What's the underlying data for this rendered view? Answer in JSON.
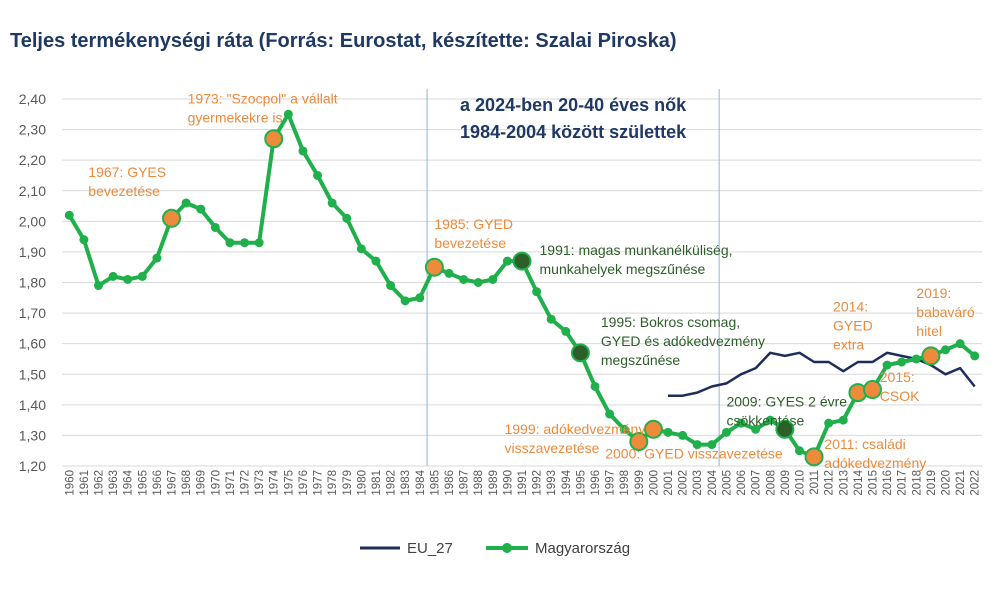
{
  "chart_data": {
    "type": "line",
    "title": "Teljes termékenységi ráta (Forrás: Eurostat, készítette: Szalai Piroska)",
    "ylim": [
      1.2,
      2.4
    ],
    "yticks": [
      "1,20",
      "1,30",
      "1,40",
      "1,50",
      "1,60",
      "1,70",
      "1,80",
      "1,90",
      "2,00",
      "2,10",
      "2,20",
      "2,30",
      "2,40"
    ],
    "x": [
      1960,
      1961,
      1962,
      1963,
      1964,
      1965,
      1966,
      1967,
      1968,
      1969,
      1970,
      1971,
      1972,
      1973,
      1974,
      1975,
      1976,
      1977,
      1978,
      1979,
      1980,
      1981,
      1982,
      1983,
      1984,
      1985,
      1986,
      1987,
      1988,
      1989,
      1990,
      1991,
      1992,
      1993,
      1994,
      1995,
      1996,
      1997,
      1998,
      1999,
      2000,
      2001,
      2002,
      2003,
      2004,
      2005,
      2006,
      2007,
      2008,
      2009,
      2010,
      2011,
      2012,
      2013,
      2014,
      2015,
      2016,
      2017,
      2018,
      2019,
      2020,
      2021,
      2022
    ],
    "grid": "horizontal",
    "legend_position": "bottom",
    "series": [
      {
        "name": "EU_27",
        "color": "#1f2d5a",
        "values": [
          null,
          null,
          null,
          null,
          null,
          null,
          null,
          null,
          null,
          null,
          null,
          null,
          null,
          null,
          null,
          null,
          null,
          null,
          null,
          null,
          null,
          null,
          null,
          null,
          null,
          null,
          null,
          null,
          null,
          null,
          null,
          null,
          null,
          null,
          null,
          null,
          null,
          null,
          null,
          null,
          null,
          1.43,
          1.43,
          1.44,
          1.46,
          1.47,
          1.5,
          1.52,
          1.57,
          1.56,
          1.57,
          1.54,
          1.54,
          1.51,
          1.54,
          1.54,
          1.57,
          1.56,
          1.55,
          1.53,
          1.5,
          1.52,
          1.46
        ]
      },
      {
        "name": "Magyarország",
        "color": "#20b04b",
        "values": [
          2.02,
          1.94,
          1.79,
          1.82,
          1.81,
          1.82,
          1.88,
          2.01,
          2.06,
          2.04,
          1.98,
          1.93,
          1.93,
          1.93,
          2.27,
          2.35,
          2.23,
          2.15,
          2.06,
          2.01,
          1.91,
          1.87,
          1.79,
          1.74,
          1.75,
          1.85,
          1.83,
          1.81,
          1.8,
          1.81,
          1.87,
          1.87,
          1.77,
          1.68,
          1.64,
          1.57,
          1.46,
          1.37,
          1.32,
          1.28,
          1.32,
          1.31,
          1.3,
          1.27,
          1.27,
          1.31,
          1.34,
          1.32,
          1.35,
          1.32,
          1.25,
          1.23,
          1.34,
          1.35,
          1.44,
          1.45,
          1.53,
          1.54,
          1.55,
          1.56,
          1.58,
          1.6,
          1.56
        ]
      }
    ],
    "highlight_markers": [
      {
        "year": 1967,
        "color": "#ed8a3c"
      },
      {
        "year": 1974,
        "color": "#ed8a3c"
      },
      {
        "year": 1985,
        "color": "#ed8a3c"
      },
      {
        "year": 1991,
        "color": "#2e5e2a"
      },
      {
        "year": 1995,
        "color": "#2e5e2a"
      },
      {
        "year": 1999,
        "color": "#ed8a3c"
      },
      {
        "year": 2000,
        "color": "#ed8a3c"
      },
      {
        "year": 2009,
        "color": "#2e5e2a"
      },
      {
        "year": 2011,
        "color": "#ed8a3c"
      },
      {
        "year": 2014,
        "color": "#ed8a3c"
      },
      {
        "year": 2015,
        "color": "#ed8a3c"
      },
      {
        "year": 2019,
        "color": "#ed8a3c"
      }
    ],
    "vertical_lines": [
      1984.5,
      2004.5
    ],
    "callout": [
      "a 2024-ben 20-40 éves nők",
      "1984-2004 között születtek"
    ],
    "annotations": [
      {
        "lines": [
          "1967: GYES",
          "bevezetése"
        ],
        "year": 1961.3,
        "value": 2.145,
        "color": "#ed8a3c"
      },
      {
        "lines": [
          "1973: \"Szocpol\" a vállalt",
          "gyermekekre is"
        ],
        "year": 1968.1,
        "value": 2.385,
        "color": "#ed8a3c"
      },
      {
        "lines": [
          "1985: GYED",
          "bevezetése"
        ],
        "year": 1985.0,
        "value": 1.975,
        "color": "#ed8a3c"
      },
      {
        "lines": [
          "1991: magas munkanélküliség,",
          "munkahelyek megszűnése"
        ],
        "year": 1992.2,
        "value": 1.89,
        "color": "#2e5e2a"
      },
      {
        "lines": [
          "1995: Bokros csomag,",
          "GYED és adókedvezmény",
          "megszűnése"
        ],
        "year": 1996.4,
        "value": 1.655,
        "color": "#2e5e2a"
      },
      {
        "lines": [
          "1999: adókedvezmény",
          "visszavezetése"
        ],
        "year": 1989.8,
        "value": 1.305,
        "color": "#ed8a3c"
      },
      {
        "lines": [
          "2000: GYED visszavezetése"
        ],
        "year": 1996.7,
        "value": 1.225,
        "color": "#ed8a3c"
      },
      {
        "lines": [
          "2009: GYES 2 évre",
          "csökkentése"
        ],
        "year": 2005.0,
        "value": 1.395,
        "color": "#2e5e2a"
      },
      {
        "lines": [
          "2011: családi",
          "adókedvezmény"
        ],
        "year": 2011.7,
        "value": 1.255,
        "color": "#ed8a3c"
      },
      {
        "lines": [
          "2014:",
          "GYED",
          "extra"
        ],
        "year": 2012.3,
        "value": 1.705,
        "color": "#ed8a3c"
      },
      {
        "lines": [
          "2015:",
          "CSOK"
        ],
        "year": 2015.5,
        "value": 1.475,
        "color": "#ed8a3c"
      },
      {
        "lines": [
          "2019:",
          "babaváró",
          "hitel"
        ],
        "year": 2018.0,
        "value": 1.75,
        "color": "#ed8a3c"
      }
    ]
  }
}
